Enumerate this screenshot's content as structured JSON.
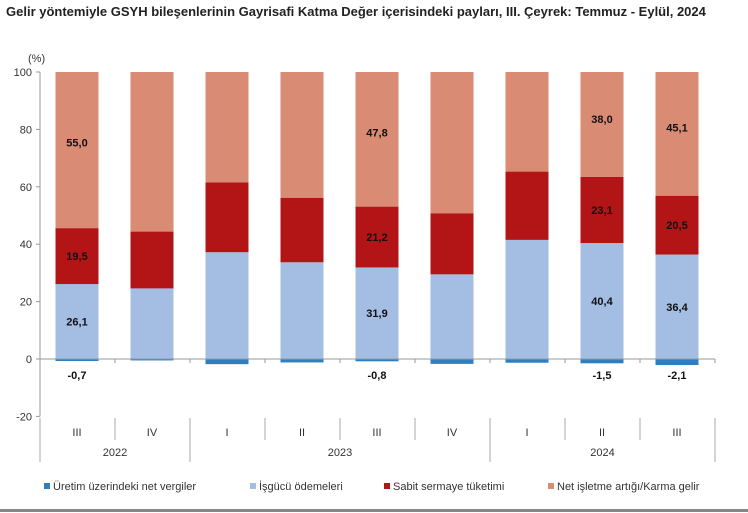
{
  "chart_data": {
    "type": "bar",
    "stacked": true,
    "title": "Gelir yöntemiyle GSYH bileşenlerinin Gayrisafi Katma Değer içerisindeki payları, III. Çeyrek: Temmuz - Eylül, 2024",
    "ylabel": "(%)",
    "ylim": [
      -20,
      100
    ],
    "yticks": [
      -20,
      0,
      20,
      40,
      60,
      80,
      100
    ],
    "grid": false,
    "legend_position": "bottom",
    "categories": [
      "III",
      "IV",
      "I",
      "II",
      "III",
      "IV",
      "I",
      "II",
      "III"
    ],
    "years": [
      {
        "label": "2022",
        "span": 2
      },
      {
        "label": "2023",
        "span": 4
      },
      {
        "label": "2024",
        "span": 3
      }
    ],
    "series": [
      {
        "name": "Üretim üzerindeki net vergiler",
        "color": "#2e7fc1",
        "values": [
          -0.7,
          -0.5,
          -1.8,
          -1.2,
          -0.8,
          -1.7,
          -1.3,
          -1.5,
          -2.1
        ],
        "labels": [
          "-0,7",
          "",
          "",
          "",
          "-0,8",
          "",
          "",
          "-1,5",
          "-2,1"
        ]
      },
      {
        "name": "İşgücü ödemeleri",
        "color": "#a4bde3",
        "values": [
          26.1,
          24.6,
          37.2,
          33.7,
          31.9,
          29.5,
          41.5,
          40.4,
          36.4
        ],
        "labels": [
          "26,1",
          "",
          "",
          "",
          "31,9",
          "",
          "",
          "40,4",
          "36,4"
        ]
      },
      {
        "name": "Sabit sermaye tüketimi",
        "color": "#b31516",
        "values": [
          19.5,
          19.8,
          24.3,
          22.5,
          21.2,
          21.3,
          23.8,
          23.1,
          20.5
        ],
        "labels": [
          "19,5",
          "",
          "",
          "",
          "21,2",
          "",
          "",
          "23,1",
          "20,5"
        ]
      },
      {
        "name": "Net işletme artığı/Karma gelir",
        "color": "#d98b74",
        "values": [
          55.0,
          56.1,
          40.3,
          45.0,
          47.8,
          50.9,
          36.0,
          38.0,
          45.1
        ],
        "labels": [
          "55,0",
          "",
          "",
          "",
          "47,8",
          "",
          "",
          "38,0",
          "45,1"
        ]
      }
    ]
  }
}
